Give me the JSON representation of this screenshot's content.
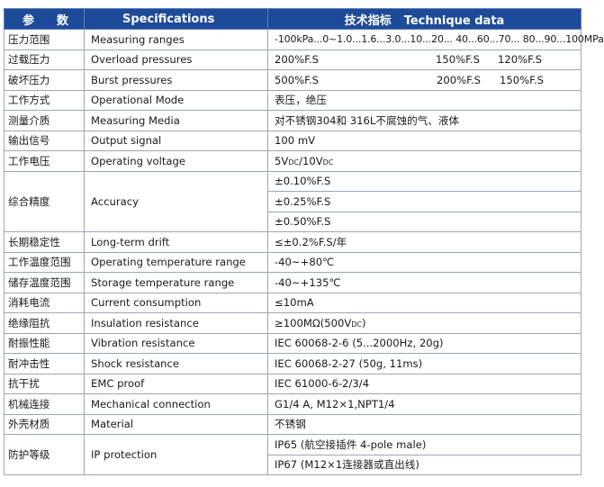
{
  "header": {
    "param": "参　数",
    "specifications": "Specifications",
    "tech_zh": "技术指标",
    "tech_en": "Technique data"
  },
  "rows": {
    "pressure_range": {
      "zh": "压力范围",
      "en": "Measuring ranges",
      "value": "-100kPa...0~1.0...1.6...3.0...10...20... 40...60...70... 80...90...100MPa"
    },
    "overload": {
      "zh": "过载压力",
      "en": "Overload pressures",
      "values": [
        "200%F.S",
        "150%F.S",
        "120%F.S"
      ]
    },
    "burst": {
      "zh": "破坏压力",
      "en": "Burst pressures",
      "values": [
        "500%F.S",
        "200%F.S",
        "150%F.S"
      ]
    },
    "mode": {
      "zh": "工作方式",
      "en": "Operational Mode",
      "value": "表压，绝压"
    },
    "media": {
      "zh": "测量介质",
      "en": "Measuring Media",
      "value": "对不锈钢304和 316L不腐蚀的气、液体"
    },
    "output": {
      "zh": "输出信号",
      "en": "Output signal",
      "value": "100 mV"
    },
    "voltage": {
      "zh": "工作电压",
      "en": "Operating voltage",
      "value_a": "5V",
      "sub_a": "DC",
      "value_b": "/10V",
      "sub_b": "DC"
    },
    "accuracy": {
      "zh": "综合精度",
      "en": "Accuracy",
      "values": [
        "±0.10%F.S",
        "±0.25%F.S",
        "±0.50%F.S"
      ]
    },
    "drift": {
      "zh": "长期稳定性",
      "en": "Long-term drift",
      "value": "≤±0.2%F.S/年"
    },
    "op_temp": {
      "zh": "工作温度范围",
      "en": "Operating temperature range",
      "value": "-40~+80℃"
    },
    "storage_temp": {
      "zh": "储存温度范围",
      "en": "Storage temperature range",
      "value": "-40~+135℃"
    },
    "current": {
      "zh": "消耗电流",
      "en": "Current consumption",
      "value": "≤10mA"
    },
    "insulation": {
      "zh": "绝缘阻抗",
      "en": "Insulation resistance",
      "value": "≥100MΩ(500V",
      "sub": "DC",
      "close": ")"
    },
    "vibration": {
      "zh": "耐振性能",
      "en": "Vibration resistance",
      "value": "IEC 60068-2-6 (5...2000Hz, 20g)"
    },
    "shock": {
      "zh": "耐冲击性",
      "en": "Shock resistance",
      "value": "IEC 60068-2-27 (50g, 11ms)"
    },
    "emc": {
      "zh": "抗干扰",
      "en": "EMC proof",
      "value": "IEC 61000-6-2/3/4"
    },
    "mechanical": {
      "zh": "机械连接",
      "en": "Mechanical connection",
      "value": "G1/4 A, M12×1,NPT1/4"
    },
    "material": {
      "zh": "外壳材质",
      "en": "Material",
      "value": "不锈钢"
    },
    "ip": {
      "zh": "防护等级",
      "en": "IP protection",
      "values": [
        "IP65 (航空接插件 4-pole male)",
        "IP67 (M12×1连接器或直出线)"
      ]
    }
  }
}
